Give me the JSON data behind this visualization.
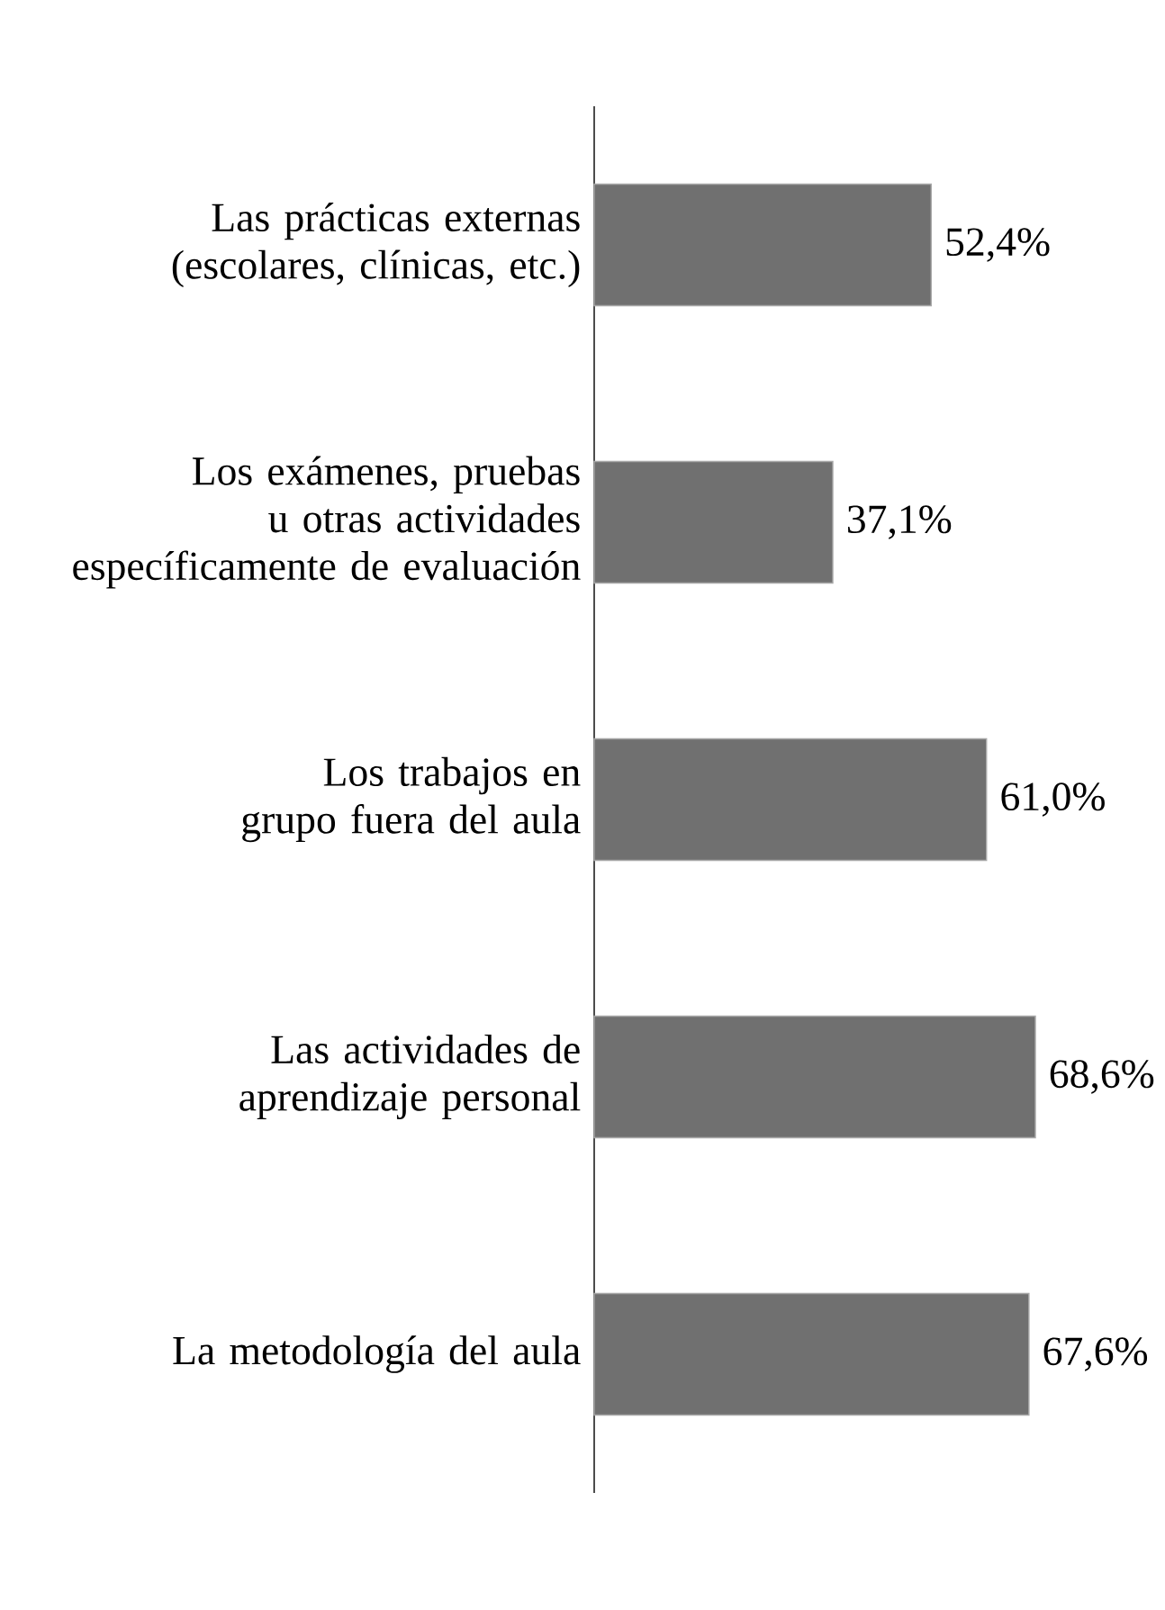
{
  "chart_data": {
    "type": "bar",
    "orientation": "horizontal",
    "categories": [
      "Las prácticas externas (escolares, clínicas, etc.)",
      "Los exámenes, pruebas u otras actividades específicamente de evaluación",
      "Los trabajos en grupo fuera del aula",
      "Las actividades de aprendizaje personal",
      "La metodología del aula"
    ],
    "values": [
      52.4,
      37.1,
      61.0,
      68.6,
      67.6
    ],
    "value_labels": [
      "52,4%",
      "37,1%",
      "61,0%",
      "68,6%",
      "67,6%"
    ],
    "color": "#707070"
  }
}
